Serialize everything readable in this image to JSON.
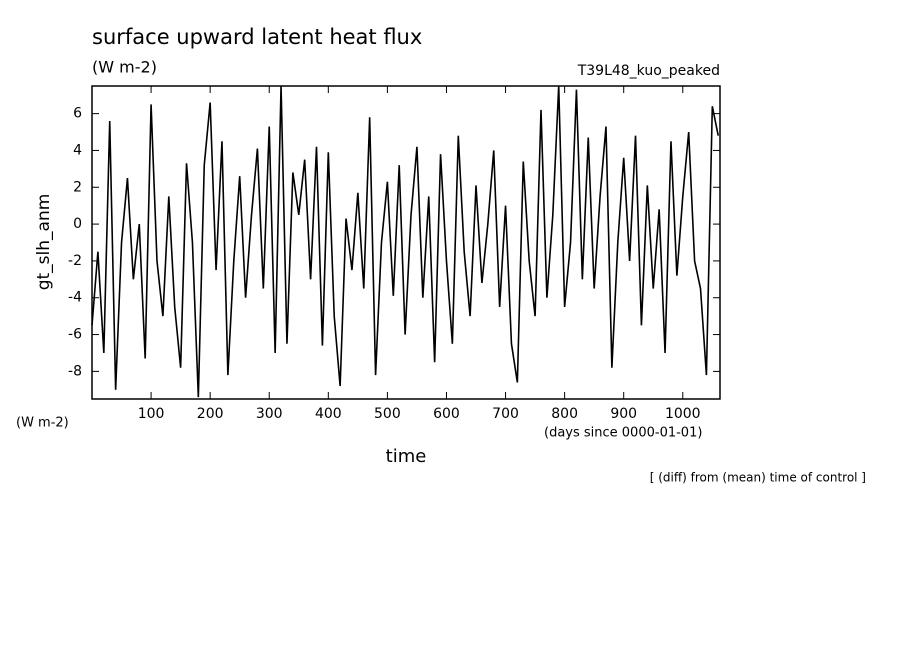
{
  "chart_data": {
    "type": "line",
    "title": "surface upward latent heat flux",
    "subtitle": "(W m-2)",
    "run_label": "T39L48_kuo_peaked",
    "y_label": "gt_slh_anm",
    "y_unit": "(W m-2)",
    "x_unit": "(days since 0000-01-01)",
    "x_label": "time",
    "note": "[ (diff) from (mean) time of control ]",
    "xlim": [
      0,
      1063
    ],
    "ylim": [
      -9.5,
      7.5
    ],
    "xticks": [
      100,
      200,
      300,
      400,
      500,
      600,
      700,
      800,
      900,
      1000
    ],
    "yticks": [
      -8,
      -6,
      -4,
      -2,
      0,
      2,
      4,
      6
    ],
    "x": [
      0,
      10,
      20,
      30,
      40,
      50,
      60,
      70,
      80,
      90,
      100,
      110,
      120,
      130,
      140,
      150,
      160,
      170,
      180,
      190,
      200,
      210,
      220,
      230,
      240,
      250,
      260,
      270,
      280,
      290,
      300,
      310,
      320,
      330,
      340,
      350,
      360,
      370,
      380,
      390,
      400,
      410,
      420,
      430,
      440,
      450,
      460,
      470,
      480,
      490,
      500,
      510,
      520,
      530,
      540,
      550,
      560,
      570,
      580,
      590,
      600,
      610,
      620,
      630,
      640,
      650,
      660,
      670,
      680,
      690,
      700,
      710,
      720,
      730,
      740,
      750,
      760,
      770,
      780,
      790,
      800,
      810,
      820,
      830,
      840,
      850,
      860,
      870,
      880,
      890,
      900,
      910,
      920,
      930,
      940,
      950,
      960,
      970,
      980,
      990,
      1000,
      1010,
      1020,
      1030,
      1040,
      1050,
      1060
    ],
    "series": [
      {
        "color": "#000000",
        "values": [
          -5.5,
          -1.5,
          -7,
          5.6,
          -9,
          -1,
          2.5,
          -3,
          0,
          -7.3,
          6.5,
          -2,
          -5,
          1.5,
          -4.5,
          -7.8,
          3.3,
          -1,
          -9.4,
          3.2,
          6.6,
          -2.5,
          4.5,
          -8.2,
          -2,
          2.6,
          -4,
          0.5,
          4.1,
          -3.5,
          5.3,
          -7,
          7.5,
          -6.5,
          2.8,
          0.5,
          3.5,
          -3,
          4.2,
          -6.6,
          3.9,
          -5,
          -8.8,
          0.3,
          -2.5,
          1.7,
          -3.5,
          5.8,
          -8.2,
          -1,
          2.3,
          -3.9,
          3.2,
          -6,
          0.5,
          4.2,
          -4,
          1.5,
          -7.5,
          3.8,
          -2,
          -6.5,
          4.8,
          -1.5,
          -5,
          2.1,
          -3.2,
          0,
          4,
          -4.5,
          1,
          -6.5,
          -8.6,
          3.4,
          -2,
          -5,
          6.2,
          -4,
          0.5,
          7.5,
          -4.5,
          -1,
          7.3,
          -3,
          4.7,
          -3.5,
          1.5,
          5.3,
          -7.8,
          -1,
          3.6,
          -2,
          4.8,
          -5.5,
          2.1,
          -3.5,
          0.8,
          -7,
          4.5,
          -2.8,
          1.5,
          5,
          -2,
          -3.5,
          -8.2,
          6.4,
          4.8
        ]
      }
    ]
  }
}
